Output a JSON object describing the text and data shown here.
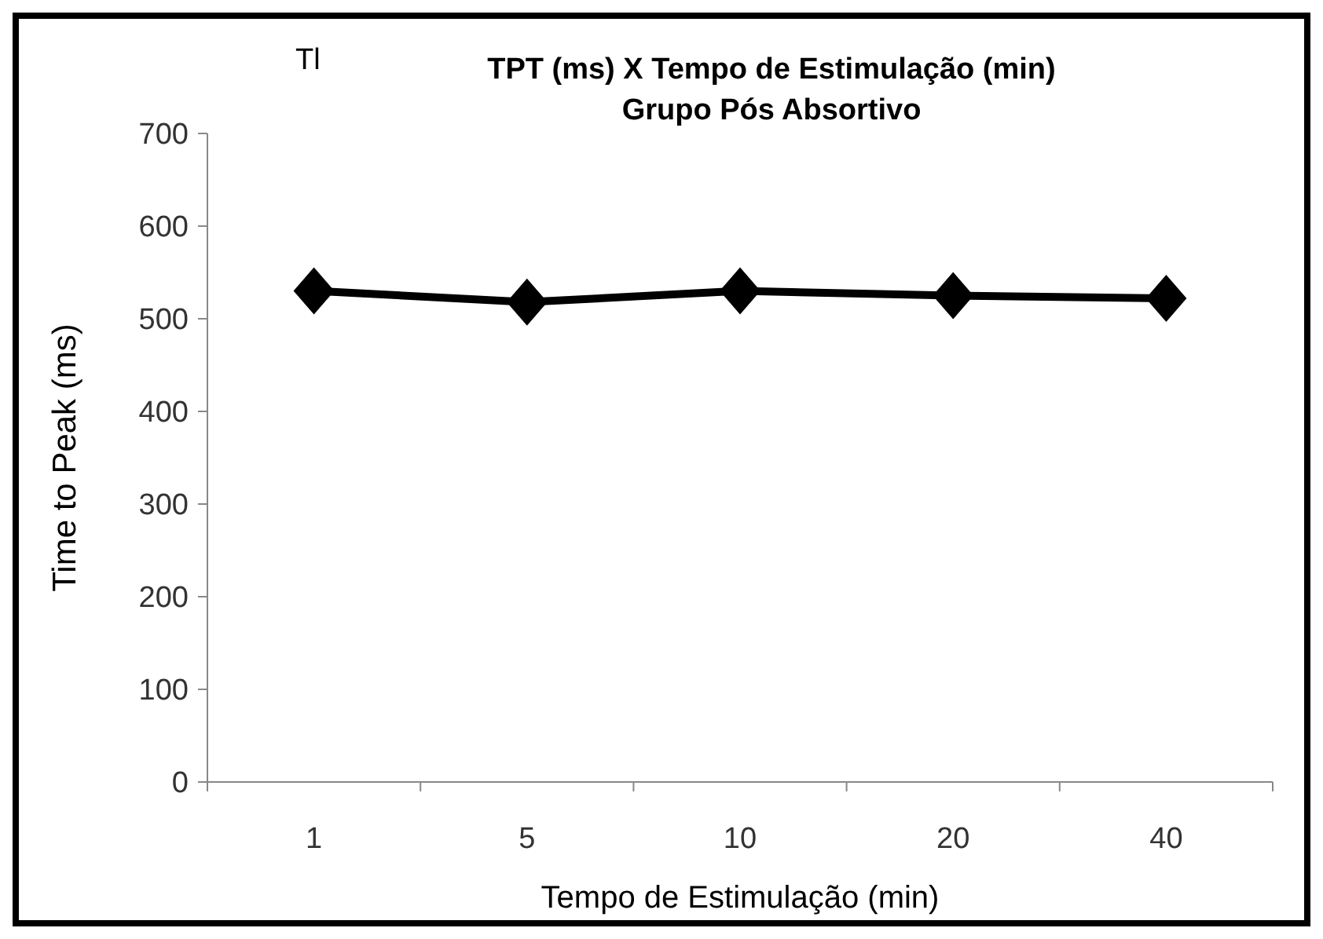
{
  "chart_data": {
    "type": "line",
    "title": "TPT (ms) X Tempo de Estimulação (min)",
    "subtitle": "Grupo Pós Absortivo",
    "xlabel": "Tempo de Estimulação (min)",
    "ylabel": "Time to Peak (ms)",
    "annotations": [
      "Tl"
    ],
    "categories": [
      "1",
      "5",
      "10",
      "20",
      "40"
    ],
    "series": [
      {
        "color": "#000000",
        "values": [
          530,
          518,
          530,
          525,
          522
        ]
      }
    ],
    "ylim": [
      0,
      700
    ],
    "yticks": [
      0,
      100,
      200,
      300,
      400,
      500,
      600,
      700
    ],
    "grid": false,
    "marker": "diamond",
    "line_style": "solid"
  }
}
